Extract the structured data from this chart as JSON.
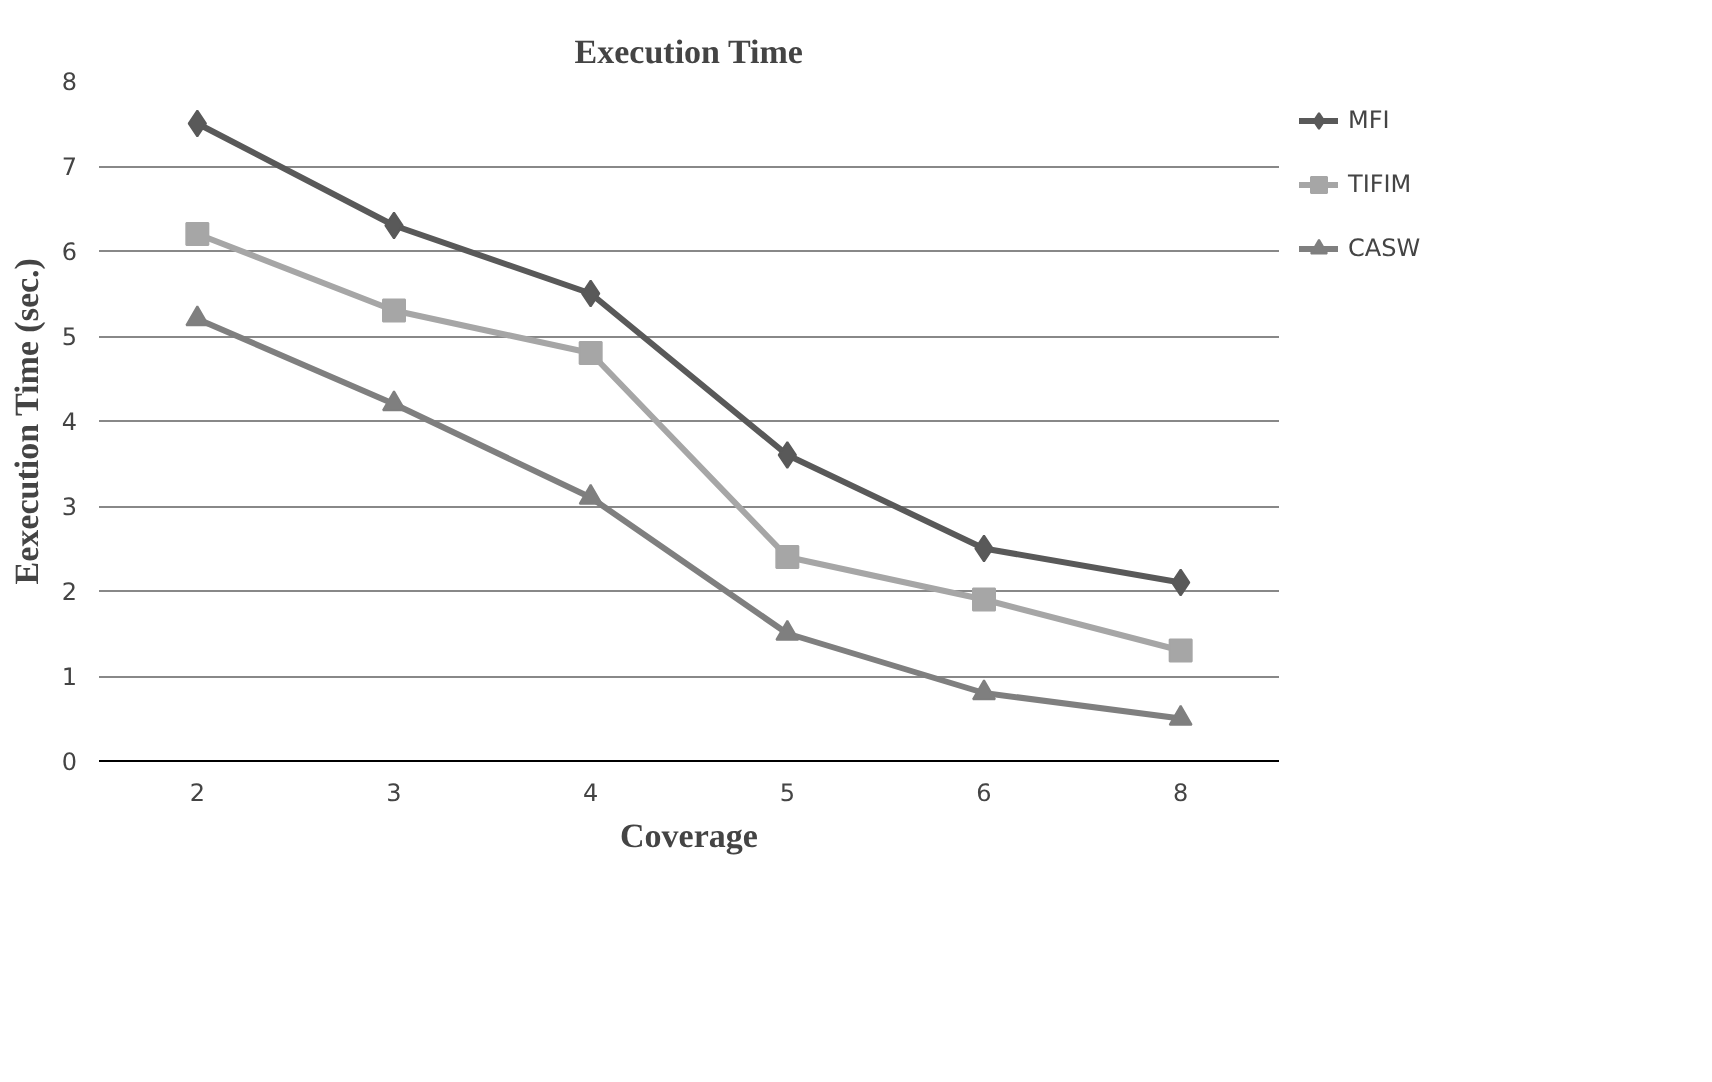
{
  "chart_data": {
    "type": "line",
    "title": "Execution Time",
    "xlabel": "Coverage",
    "ylabel": "Eexecution Time (sec.)",
    "categories": [
      "2",
      "3",
      "4",
      "5",
      "6",
      "8"
    ],
    "series": [
      {
        "name": "MFI",
        "color": "#595959",
        "marker": "diamond",
        "values": [
          7.5,
          6.3,
          5.5,
          3.6,
          2.5,
          2.1
        ]
      },
      {
        "name": "TIFIM",
        "color": "#a6a6a6",
        "marker": "square",
        "values": [
          6.2,
          5.3,
          4.8,
          2.4,
          1.9,
          1.3
        ]
      },
      {
        "name": "CASW",
        "color": "#7f7f7f",
        "marker": "triangle",
        "values": [
          5.2,
          4.2,
          3.1,
          1.5,
          0.8,
          0.5
        ]
      }
    ],
    "ylim": [
      0,
      8
    ],
    "yticks": [
      0,
      1,
      2,
      3,
      4,
      5,
      6,
      7,
      8
    ],
    "grid": "y",
    "legend": "right",
    "line_style": "solid"
  }
}
